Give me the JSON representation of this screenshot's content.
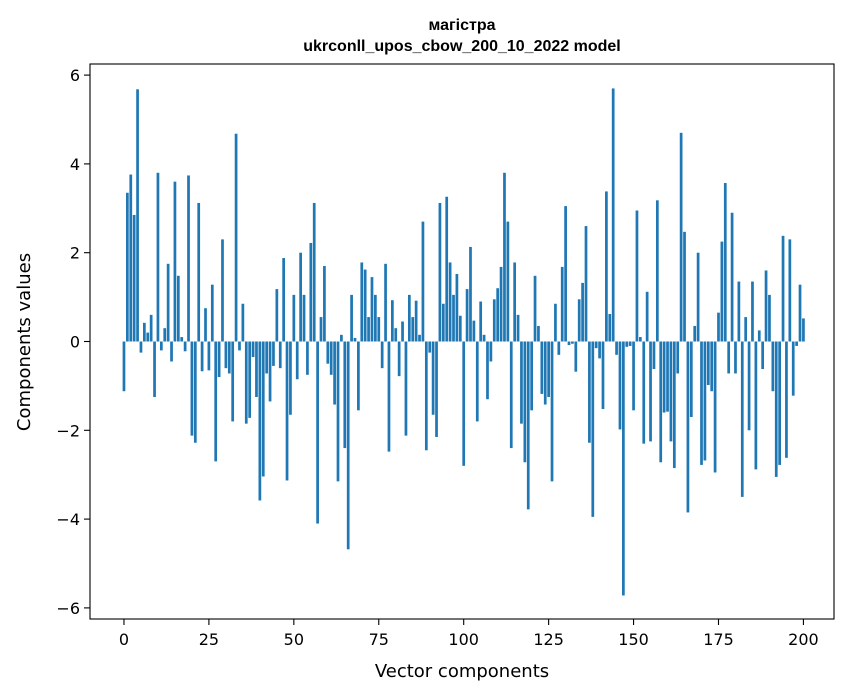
{
  "chart_data": {
    "type": "bar",
    "title_line1": "магістра",
    "title_line2": "ukrconll_upos_cbow_200_10_2022 model",
    "xlabel": "Vector components",
    "ylabel": "Components values",
    "xlim": [
      -10,
      209
    ],
    "ylim": [
      -6.25,
      6.25
    ],
    "xticks": [
      0,
      25,
      50,
      75,
      100,
      125,
      150,
      175,
      200
    ],
    "xtick_labels": [
      "0",
      "25",
      "50",
      "75",
      "100",
      "125",
      "150",
      "175",
      "200"
    ],
    "yticks": [
      6,
      4,
      2,
      0,
      -2,
      -4,
      -6
    ],
    "ytick_labels": [
      "6",
      "4",
      "2",
      "0",
      "−2",
      "−4",
      "−6"
    ],
    "grid": false,
    "bar_color": "#1f77b4",
    "values": [
      -1.12,
      3.35,
      3.76,
      2.85,
      5.68,
      -0.25,
      0.42,
      0.2,
      0.6,
      -1.25,
      3.8,
      -0.2,
      0.3,
      1.75,
      -0.45,
      3.6,
      1.48,
      0.1,
      -0.22,
      3.74,
      -2.12,
      -2.28,
      3.12,
      -0.67,
      0.75,
      -0.65,
      1.28,
      -2.7,
      -0.8,
      2.3,
      -0.6,
      -0.72,
      -1.8,
      4.68,
      -0.2,
      0.85,
      -1.85,
      -1.72,
      -0.35,
      -1.25,
      -3.58,
      -3.04,
      -0.72,
      -1.35,
      -0.55,
      1.18,
      -0.6,
      1.88,
      -3.13,
      -1.65,
      1.05,
      -0.85,
      2.0,
      1.05,
      -0.75,
      2.22,
      3.12,
      -4.1,
      0.55,
      1.7,
      -0.5,
      -0.75,
      -1.42,
      -3.15,
      0.15,
      -2.4,
      -4.68,
      1.05,
      0.08,
      -1.55,
      1.78,
      1.62,
      0.55,
      1.45,
      1.05,
      0.55,
      -0.6,
      1.75,
      -2.48,
      0.93,
      0.3,
      -0.78,
      0.45,
      -2.12,
      1.05,
      0.55,
      0.92,
      0.15,
      2.7,
      -2.45,
      -0.25,
      -1.65,
      -2.15,
      3.12,
      0.85,
      3.26,
      1.78,
      1.05,
      1.52,
      0.58,
      -2.8,
      1.18,
      2.13,
      0.47,
      -1.8,
      0.9,
      0.15,
      -1.3,
      -0.45,
      0.95,
      1.2,
      1.68,
      3.8,
      2.7,
      -2.4,
      1.78,
      0.6,
      -1.85,
      -2.72,
      -3.78,
      -1.55,
      1.48,
      0.35,
      -1.18,
      -1.42,
      -1.25,
      -3.15,
      0.85,
      -0.3,
      1.68,
      3.05,
      -0.08,
      -0.05,
      -0.68,
      0.95,
      1.32,
      2.6,
      -2.28,
      -3.95,
      -0.15,
      -0.38,
      -1.52,
      3.38,
      0.62,
      5.7,
      -0.3,
      -1.98,
      -5.72,
      -0.12,
      -0.1,
      -1.55,
      2.95,
      0.1,
      -2.3,
      1.12,
      -2.25,
      -0.62,
      3.18,
      -2.72,
      -1.6,
      -1.58,
      -2.25,
      -2.85,
      -0.72,
      4.7,
      2.47,
      -3.85,
      -1.7,
      0.35,
      2.0,
      -2.78,
      -2.68,
      -0.98,
      -1.12,
      -2.95,
      0.65,
      2.25,
      3.57,
      -0.72,
      2.9,
      -0.72,
      1.35,
      -3.5,
      0.55,
      -2.0,
      1.35,
      -2.88,
      0.25,
      -0.62,
      1.6,
      1.05,
      -1.12,
      -3.05,
      -2.78,
      2.38,
      -2.62,
      2.3,
      -1.22,
      -0.1,
      1.28,
      0.52
    ]
  }
}
